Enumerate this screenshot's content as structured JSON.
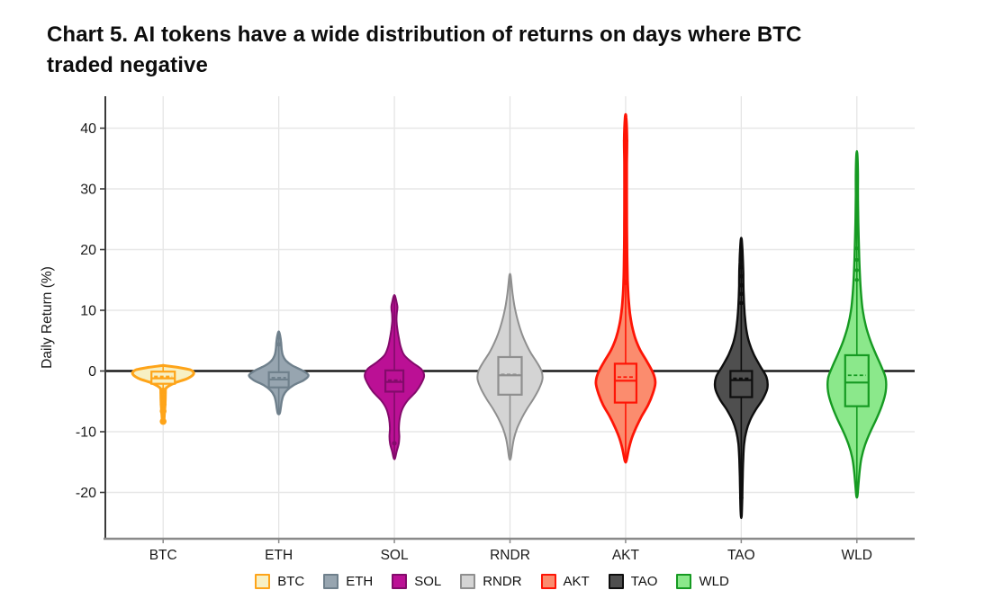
{
  "title": {
    "line1": "Chart 5. AI tokens have a wide distribution of returns on days where BTC",
    "line2": "traded negative"
  },
  "chart_data": {
    "type": "violin",
    "title": "Chart 5. AI tokens have a wide distribution of returns on days where BTC traded negative",
    "xlabel": "",
    "ylabel": "Daily Return (%)",
    "yticks": [
      40,
      30,
      20,
      10,
      0,
      -10,
      -20
    ],
    "ylim": [
      -27.5,
      45.3
    ],
    "grid": true,
    "zero_line": 0,
    "legend_position": "bottom",
    "categories": [
      "BTC",
      "ETH",
      "SOL",
      "RNDR",
      "AKT",
      "TAO",
      "WLD"
    ],
    "axis_colors": {
      "y_axis": "#3a3a3a",
      "x_axis": "#8a8a8a",
      "gridline": "#e7e7e7",
      "zero_line": "#1a1a1a"
    },
    "series": [
      {
        "name": "BTC",
        "fill": "#F7F0C4",
        "stroke": "#FEA419",
        "line_width": 3,
        "profile": [
          [
            0.9,
            0.5
          ],
          [
            0.6,
            16
          ],
          [
            0.2,
            30
          ],
          [
            -0.3,
            34
          ],
          [
            -0.8,
            32
          ],
          [
            -1.3,
            26
          ],
          [
            -1.9,
            14
          ],
          [
            -2.4,
            7
          ],
          [
            -2.9,
            3
          ],
          [
            -3.6,
            2.6
          ],
          [
            -4.8,
            2.4
          ],
          [
            -6.0,
            2.0
          ],
          [
            -7.2,
            1.4
          ],
          [
            -8.4,
            0.7
          ]
        ],
        "box": {
          "q3": -0.1,
          "q1": -2.1,
          "median": -1.2,
          "mean": -0.9
        },
        "box_halfwidth": 13,
        "outliers": [
          -3.3,
          -4.4,
          -5.5,
          -6.6,
          -8.3
        ],
        "outlier_r": 3.8
      },
      {
        "name": "ETH",
        "fill": "#97A5B0",
        "stroke": "#6F808C",
        "line_width": 2.4,
        "profile": [
          [
            6.4,
            0.5
          ],
          [
            5.6,
            1.8
          ],
          [
            4.7,
            2.6
          ],
          [
            3.6,
            3.2
          ],
          [
            2.6,
            4.5
          ],
          [
            1.7,
            8
          ],
          [
            0.9,
            15
          ],
          [
            0.1,
            26
          ],
          [
            -0.7,
            33
          ],
          [
            -1.5,
            28
          ],
          [
            -2.3,
            17
          ],
          [
            -3.2,
            9
          ],
          [
            -4.1,
            5
          ],
          [
            -5.1,
            3.2
          ],
          [
            -6.1,
            2.2
          ],
          [
            -7.0,
            1.0
          ]
        ],
        "box": {
          "q3": -0.2,
          "q1": -2.7,
          "median": -1.4,
          "mean": -1.1
        },
        "box_halfwidth": 11,
        "outliers": [
          5.6,
          4.4
        ],
        "outlier_r": 2.6
      },
      {
        "name": "SOL",
        "fill": "#BB1095",
        "stroke": "#830B6B",
        "line_width": 2,
        "profile": [
          [
            12.4,
            0.6
          ],
          [
            11.5,
            2.2
          ],
          [
            10.5,
            3.4
          ],
          [
            9.4,
            2.6
          ],
          [
            8.2,
            2.4
          ],
          [
            6.8,
            3.4
          ],
          [
            5.4,
            5
          ],
          [
            4.0,
            7
          ],
          [
            2.6,
            11
          ],
          [
            1.4,
            20
          ],
          [
            0.3,
            30
          ],
          [
            -0.8,
            33
          ],
          [
            -2.0,
            30
          ],
          [
            -3.4,
            24
          ],
          [
            -4.8,
            15
          ],
          [
            -6.2,
            9
          ],
          [
            -7.8,
            6
          ],
          [
            -9.4,
            5
          ],
          [
            -10.8,
            5.5
          ],
          [
            -12.0,
            4.8
          ],
          [
            -13.2,
            2.6
          ],
          [
            -14.4,
            0.7
          ]
        ],
        "box": {
          "q3": 0.1,
          "q1": -3.4,
          "median": -1.8,
          "mean": -1.5
        },
        "box_halfwidth": 10,
        "outliers": [
          -11.9
        ],
        "outlier_r": 2.6
      },
      {
        "name": "RNDR",
        "fill": "#D4D4D4",
        "stroke": "#8F8F8F",
        "line_width": 2,
        "profile": [
          [
            15.8,
            0.6
          ],
          [
            14.2,
            1.8
          ],
          [
            12.6,
            3
          ],
          [
            11.0,
            4.6
          ],
          [
            9.4,
            6.8
          ],
          [
            7.8,
            9.6
          ],
          [
            6.2,
            13
          ],
          [
            4.6,
            17.5
          ],
          [
            3.0,
            23
          ],
          [
            1.4,
            30
          ],
          [
            0.0,
            35
          ],
          [
            -1.4,
            36
          ],
          [
            -3.0,
            32
          ],
          [
            -4.6,
            26
          ],
          [
            -6.2,
            19
          ],
          [
            -7.8,
            13
          ],
          [
            -9.4,
            8
          ],
          [
            -11.0,
            4.6
          ],
          [
            -12.6,
            2.6
          ],
          [
            -14.4,
            0.8
          ]
        ],
        "box": {
          "q3": 2.3,
          "q1": -3.9,
          "median": -0.7,
          "mean": -0.55
        },
        "box_halfwidth": 13,
        "outliers": [],
        "outlier_r": 2.4
      },
      {
        "name": "AKT",
        "fill": "#FB8C6E",
        "stroke": "#FE1506",
        "line_width": 2.8,
        "profile": [
          [
            41.8,
            0.6
          ],
          [
            38.0,
            1.6
          ],
          [
            34,
            1.3
          ],
          [
            29,
            1.3
          ],
          [
            24,
            1.4
          ],
          [
            19,
            1.7
          ],
          [
            15,
            2.2
          ],
          [
            12,
            3.2
          ],
          [
            9.5,
            4.8
          ],
          [
            7.5,
            7
          ],
          [
            5.5,
            10.5
          ],
          [
            3.5,
            16
          ],
          [
            1.5,
            24
          ],
          [
            -0.5,
            31
          ],
          [
            -2.0,
            33
          ],
          [
            -3.8,
            30
          ],
          [
            -5.6,
            25
          ],
          [
            -7.4,
            18
          ],
          [
            -9.2,
            12
          ],
          [
            -11.0,
            7
          ],
          [
            -12.8,
            3.6
          ],
          [
            -14.8,
            0.8
          ]
        ],
        "box": {
          "q3": 1.2,
          "q1": -5.2,
          "median": -1.6,
          "mean": -1.0
        },
        "box_halfwidth": 12,
        "outliers": [
          37.9,
          14.6
        ],
        "outlier_r": 3
      },
      {
        "name": "TAO",
        "fill": "#4F4F4F",
        "stroke": "#0E0E0E",
        "line_width": 2.4,
        "profile": [
          [
            21.7,
            0.5
          ],
          [
            19.8,
            1.4
          ],
          [
            17.9,
            1.9
          ],
          [
            16.0,
            2.3
          ],
          [
            14.1,
            2.4
          ],
          [
            12.2,
            2.8
          ],
          [
            10.3,
            3.4
          ],
          [
            8.4,
            4.4
          ],
          [
            6.5,
            6
          ],
          [
            4.6,
            9
          ],
          [
            2.7,
            14
          ],
          [
            0.8,
            21
          ],
          [
            -1.0,
            28
          ],
          [
            -2.8,
            29
          ],
          [
            -4.6,
            24
          ],
          [
            -6.4,
            16
          ],
          [
            -8.2,
            9.5
          ],
          [
            -10.0,
            5.5
          ],
          [
            -12.0,
            3.2
          ],
          [
            -14.5,
            2.2
          ],
          [
            -17.5,
            1.6
          ],
          [
            -20.5,
            1.2
          ],
          [
            -23.8,
            0.5
          ]
        ],
        "box": {
          "q3": 0.0,
          "q1": -4.3,
          "median": -1.5,
          "mean": -1.2
        },
        "box_halfwidth": 12,
        "outliers": [
          18.6,
          17.1,
          15.6,
          14.1,
          12.7,
          11.2,
          -20.9
        ],
        "outlier_r": 2.4
      },
      {
        "name": "WLD",
        "fill": "#8BE88B",
        "stroke": "#169A22",
        "line_width": 2.4,
        "profile": [
          [
            35.8,
            0.5
          ],
          [
            32.5,
            1.2
          ],
          [
            29.0,
            1.2
          ],
          [
            25.5,
            1.5
          ],
          [
            22.0,
            2.0
          ],
          [
            18.8,
            2.6
          ],
          [
            15.8,
            3.4
          ],
          [
            12.8,
            4.6
          ],
          [
            10.0,
            6.5
          ],
          [
            7.4,
            10
          ],
          [
            5.0,
            15
          ],
          [
            2.8,
            21
          ],
          [
            0.8,
            27
          ],
          [
            -1.2,
            32
          ],
          [
            -3.4,
            32
          ],
          [
            -5.6,
            28
          ],
          [
            -7.8,
            22
          ],
          [
            -10.0,
            15
          ],
          [
            -12.2,
            9
          ],
          [
            -14.4,
            5
          ],
          [
            -16.6,
            3
          ],
          [
            -18.6,
            1.8
          ],
          [
            -20.6,
            0.6
          ]
        ],
        "box": {
          "q3": 2.6,
          "q1": -5.8,
          "median": -1.9,
          "mean": -0.7
        },
        "box_halfwidth": 13,
        "outliers": [
          30.4,
          20.2,
          18.3,
          16.6,
          15.0
        ],
        "outlier_r": 2.2
      }
    ]
  }
}
